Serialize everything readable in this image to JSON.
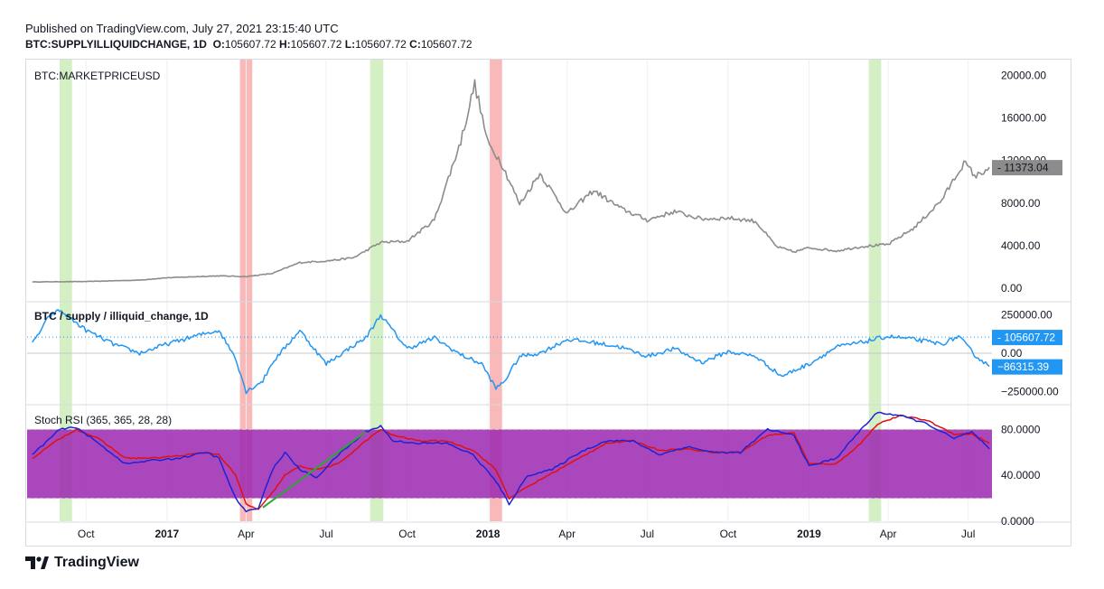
{
  "header": {
    "published": "Published on TradingView.com, July 27, 2021 23:15:40 UTC",
    "symbol": "BTC:SUPPLYILLIQUIDCHANGE, 1D",
    "o_label": "O:",
    "o_value": "105607.72",
    "h_label": "H:",
    "h_value": "105607.72",
    "l_label": "L:",
    "l_value": "105607.72",
    "c_label": "C:",
    "c_value": "105607.72"
  },
  "footer": {
    "brand": "TradingView"
  },
  "colors": {
    "price": "#8c8c8c",
    "supply": "#2196f3",
    "rsi_k": "#1e22d6",
    "rsi_d": "#e01010",
    "rsi_band": "#9c27b0",
    "green_band": "#c8ebb4",
    "red_band": "#f7a8a8",
    "trend": "#2aa835",
    "grid": "#eef0f3"
  },
  "chart_data": [
    {
      "type": "line",
      "title": "BTC:MARKETPRICEUSD",
      "y_ticks": [
        "20000.00",
        "16000.00",
        "12000.00",
        "8000.00",
        "4000.00",
        "0.00"
      ],
      "ylim": [
        -1200,
        21500
      ],
      "last_value_label": "11373.04",
      "x": [
        "2016-08-01",
        "2016-10-01",
        "2016-12-01",
        "2017-01-01",
        "2017-03-01",
        "2017-04-01",
        "2017-05-01",
        "2017-06-01",
        "2017-07-01",
        "2017-08-01",
        "2017-09-01",
        "2017-10-01",
        "2017-11-01",
        "2017-12-01",
        "2017-12-17",
        "2018-01-01",
        "2018-01-15",
        "2018-02-06",
        "2018-03-01",
        "2018-04-01",
        "2018-05-01",
        "2018-06-01",
        "2018-07-01",
        "2018-08-01",
        "2018-09-01",
        "2018-10-01",
        "2018-11-01",
        "2018-11-25",
        "2018-12-15",
        "2019-01-01",
        "2019-02-01",
        "2019-03-01",
        "2019-04-01",
        "2019-05-01",
        "2019-06-01",
        "2019-06-26",
        "2019-07-10",
        "2019-07-25"
      ],
      "values": [
        580,
        615,
        750,
        970,
        1150,
        1080,
        1380,
        2400,
        2550,
        2850,
        4300,
        4400,
        6400,
        13800,
        19200,
        13600,
        12000,
        7900,
        10800,
        7000,
        9200,
        7500,
        6400,
        7200,
        6500,
        6600,
        6300,
        3900,
        3400,
        3800,
        3500,
        3900,
        4100,
        5700,
        8300,
        11800,
        10500,
        11373
      ]
    },
    {
      "type": "line",
      "title": "BTC / supply / illiquid_change, 1D",
      "y_ticks": [
        "250000.00",
        "0.00",
        "−250000.00"
      ],
      "ylim": [
        -330000,
        330000
      ],
      "last_value_label": "105607.72",
      "second_value_label": "−86315.39",
      "x": [
        "2016-08-01",
        "2016-08-20",
        "2016-09-01",
        "2016-10-01",
        "2016-11-01",
        "2016-12-01",
        "2017-01-01",
        "2017-02-01",
        "2017-03-01",
        "2017-03-20",
        "2017-04-01",
        "2017-04-20",
        "2017-05-01",
        "2017-06-01",
        "2017-07-01",
        "2017-08-01",
        "2017-08-15",
        "2017-09-01",
        "2017-10-01",
        "2017-11-01",
        "2017-12-01",
        "2017-12-25",
        "2018-01-10",
        "2018-01-20",
        "2018-02-06",
        "2018-03-01",
        "2018-04-01",
        "2018-05-01",
        "2018-06-01",
        "2018-07-01",
        "2018-08-01",
        "2018-09-01",
        "2018-10-01",
        "2018-11-01",
        "2018-12-01",
        "2019-01-01",
        "2019-02-01",
        "2019-03-01",
        "2019-04-01",
        "2019-05-01",
        "2019-06-01",
        "2019-06-20",
        "2019-07-10",
        "2019-07-25"
      ],
      "values": [
        60000,
        240000,
        280000,
        150000,
        60000,
        0,
        60000,
        110000,
        150000,
        -30000,
        -250000,
        -180000,
        -60000,
        150000,
        -70000,
        50000,
        100000,
        250000,
        30000,
        100000,
        -10000,
        -70000,
        -230000,
        -180000,
        -20000,
        0,
        90000,
        70000,
        40000,
        -20000,
        30000,
        -60000,
        10000,
        -20000,
        -150000,
        -70000,
        40000,
        70000,
        110000,
        90000,
        60000,
        110000,
        -20000,
        -86315
      ]
    },
    {
      "type": "line",
      "title": "Stoch RSI (365, 365, 28, 28)",
      "y_ticks": [
        "80.0000",
        "40.0000",
        "0.0000"
      ],
      "ylim": [
        0,
        100
      ],
      "band": [
        20,
        80
      ],
      "x_ticks": [
        "Oct",
        "2017",
        "Apr",
        "Jul",
        "Oct",
        "2018",
        "Apr",
        "Jul",
        "Oct",
        "2019",
        "Apr",
        "Jul"
      ],
      "series": [
        {
          "x": [
            "2016-08-01",
            "2016-09-01",
            "2016-09-20",
            "2016-10-15",
            "2016-11-15",
            "2016-12-15",
            "2017-01-15",
            "2017-02-15",
            "2017-03-01",
            "2017-03-20",
            "2017-04-01",
            "2017-04-15",
            "2017-05-01",
            "2017-05-15",
            "2017-06-01",
            "2017-06-20",
            "2017-07-15",
            "2017-08-15",
            "2017-09-01",
            "2017-09-15",
            "2017-10-15",
            "2017-11-15",
            "2017-12-15",
            "2018-01-10",
            "2018-01-25",
            "2018-02-15",
            "2018-03-15",
            "2018-04-15",
            "2018-05-15",
            "2018-06-15",
            "2018-07-15",
            "2018-08-15",
            "2018-09-15",
            "2018-10-15",
            "2018-11-15",
            "2018-12-15",
            "2019-01-01",
            "2019-02-01",
            "2019-03-01",
            "2019-03-20",
            "2019-04-15",
            "2019-05-15",
            "2019-06-15",
            "2019-07-05",
            "2019-07-25"
          ],
          "values": [
            58,
            80,
            82,
            68,
            50,
            53,
            55,
            60,
            55,
            20,
            8,
            12,
            45,
            60,
            45,
            38,
            58,
            78,
            83,
            70,
            68,
            68,
            58,
            35,
            15,
            40,
            45,
            60,
            70,
            70,
            58,
            65,
            60,
            60,
            80,
            75,
            48,
            55,
            80,
            95,
            92,
            85,
            72,
            78,
            63
          ]
        },
        {
          "x": [
            "2016-08-01",
            "2016-09-01",
            "2016-09-20",
            "2016-10-15",
            "2016-11-15",
            "2016-12-15",
            "2017-01-15",
            "2017-02-15",
            "2017-03-01",
            "2017-03-20",
            "2017-04-01",
            "2017-04-15",
            "2017-05-01",
            "2017-05-15",
            "2017-06-01",
            "2017-06-20",
            "2017-07-15",
            "2017-08-15",
            "2017-09-01",
            "2017-09-15",
            "2017-10-15",
            "2017-11-15",
            "2017-12-15",
            "2018-01-10",
            "2018-01-25",
            "2018-02-15",
            "2018-03-15",
            "2018-04-15",
            "2018-05-15",
            "2018-06-15",
            "2018-07-15",
            "2018-08-15",
            "2018-09-15",
            "2018-10-15",
            "2018-11-15",
            "2018-12-15",
            "2019-01-01",
            "2019-02-01",
            "2019-03-01",
            "2019-03-20",
            "2019-04-15",
            "2019-05-15",
            "2019-06-15",
            "2019-07-05",
            "2019-07-25"
          ],
          "values": [
            55,
            72,
            80,
            72,
            55,
            55,
            57,
            60,
            58,
            40,
            15,
            10,
            25,
            40,
            48,
            45,
            50,
            70,
            80,
            75,
            70,
            70,
            62,
            45,
            20,
            30,
            42,
            55,
            68,
            70,
            62,
            63,
            60,
            60,
            75,
            77,
            50,
            50,
            68,
            85,
            92,
            88,
            76,
            76,
            68
          ]
        }
      ]
    }
  ]
}
